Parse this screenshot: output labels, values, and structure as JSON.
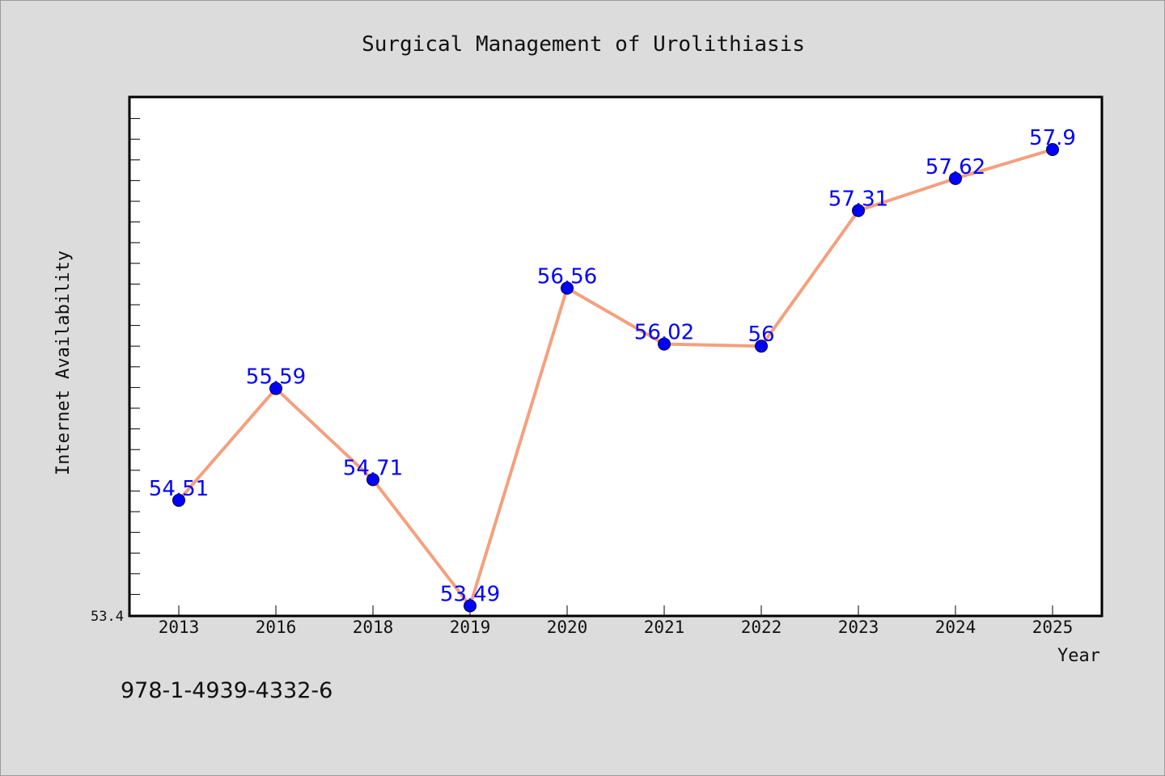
{
  "chart_data": {
    "type": "line",
    "title": "Surgical Management of Urolithiasis",
    "xlabel": "Year",
    "ylabel": "Internet Availability",
    "categories": [
      "2013",
      "2016",
      "2018",
      "2019",
      "2020",
      "2021",
      "2022",
      "2023",
      "2024",
      "2025"
    ],
    "series": [
      {
        "values": [
          54.51,
          55.59,
          54.71,
          53.49,
          56.56,
          56.02,
          56,
          57.31,
          57.62,
          57.9
        ],
        "data_labels": [
          "54.51",
          "55.59",
          "54.71",
          "53.49",
          "56.56",
          "56.02",
          "56",
          "57.31",
          "57.62",
          "57.9"
        ],
        "line_color": "#f4a07e",
        "marker_color": "#0000ff"
      }
    ],
    "ylim": [
      53.4,
      58.4
    ],
    "y_tick_labels": [
      "53.4"
    ],
    "grid": false,
    "legend": "none"
  },
  "footer": {
    "isbn": "978-1-4939-4332-6"
  },
  "colors": {
    "background": "#dcdcdc",
    "plot_background": "#ffffff",
    "label_color": "#0000ff"
  }
}
